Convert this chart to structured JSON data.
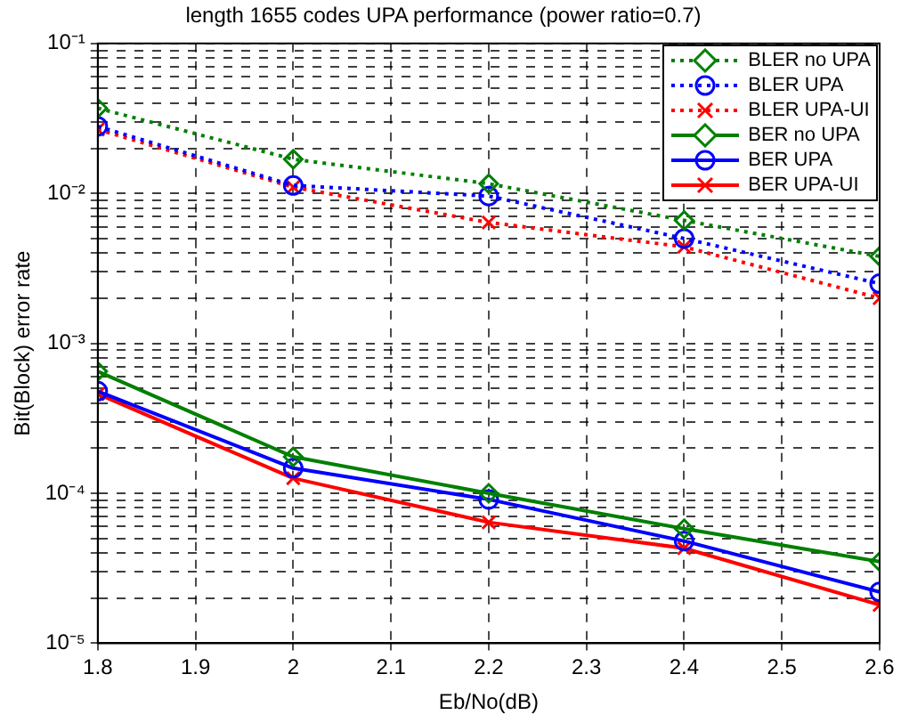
{
  "chart_data": {
    "type": "line",
    "title": "length 1655 codes UPA performance (power ratio=0.7)",
    "xlabel": "Eb/No(dB)",
    "ylabel": "Bit(Block) error rate",
    "x": [
      1.8,
      2.0,
      2.2,
      2.4,
      2.6
    ],
    "series": [
      {
        "name": "BLER no UPA",
        "color": "#008000",
        "marker": "diamond",
        "line_style": "dotted",
        "values": [
          0.037,
          0.0169,
          0.0116,
          0.0066,
          0.0038
        ]
      },
      {
        "name": "BLER UPA",
        "color": "#0000ff",
        "marker": "circle",
        "line_style": "dotted",
        "values": [
          0.028,
          0.0113,
          0.0096,
          0.005,
          0.0025
        ]
      },
      {
        "name": "BLER UPA-UI",
        "color": "#ff0000",
        "marker": "cross",
        "line_style": "dotted",
        "values": [
          0.0267,
          0.011,
          0.0064,
          0.0044,
          0.002
        ]
      },
      {
        "name": "BER no UPA",
        "color": "#008000",
        "marker": "diamond",
        "line_style": "solid",
        "values": [
          0.00065,
          0.000175,
          0.0001,
          5.8e-05,
          3.5e-05
        ]
      },
      {
        "name": "BER UPA",
        "color": "#0000ff",
        "marker": "circle",
        "line_style": "solid",
        "values": [
          0.00048,
          0.000147,
          9.1e-05,
          4.8e-05,
          2.2e-05
        ]
      },
      {
        "name": "BER UPA-UI",
        "color": "#ff0000",
        "marker": "cross",
        "line_style": "solid",
        "values": [
          0.00046,
          0.000126,
          6.4e-05,
          4.3e-05,
          1.8e-05
        ]
      }
    ],
    "log": "y",
    "grid": true,
    "legend": "top right",
    "xlim": [
      1.8,
      2.6
    ],
    "xticks": [
      1.8,
      1.9,
      2,
      2.1,
      2.2,
      2.3,
      2.4,
      2.5,
      2.6
    ],
    "ylim": [
      1e-05,
      0.1
    ],
    "yticks": [
      {
        "value": 1e-05,
        "label": "10⁻⁵"
      },
      {
        "value": 2e-05,
        "label": null
      },
      {
        "value": 3e-05,
        "label": null
      },
      {
        "value": 4e-05,
        "label": null
      },
      {
        "value": 5e-05,
        "label": null
      },
      {
        "value": 6e-05,
        "label": null
      },
      {
        "value": 7e-05,
        "label": null
      },
      {
        "value": 8e-05,
        "label": null
      },
      {
        "value": 9e-05,
        "label": null
      },
      {
        "value": 0.0001,
        "label": "10⁻⁴"
      },
      {
        "value": 0.0002,
        "label": null
      },
      {
        "value": 0.0003,
        "label": null
      },
      {
        "value": 0.0004,
        "label": null
      },
      {
        "value": 0.0005,
        "label": null
      },
      {
        "value": 0.0006,
        "label": null
      },
      {
        "value": 0.0007,
        "label": null
      },
      {
        "value": 0.0008,
        "label": null
      },
      {
        "value": 0.0009,
        "label": null
      },
      {
        "value": 0.001,
        "label": "10⁻³"
      },
      {
        "value": 0.002,
        "label": null
      },
      {
        "value": 0.003,
        "label": null
      },
      {
        "value": 0.004,
        "label": null
      },
      {
        "value": 0.005,
        "label": null
      },
      {
        "value": 0.006,
        "label": null
      },
      {
        "value": 0.007,
        "label": null
      },
      {
        "value": 0.008,
        "label": null
      },
      {
        "value": 0.009,
        "label": null
      },
      {
        "value": 0.01,
        "label": "10⁻²"
      },
      {
        "value": 0.02,
        "label": null
      },
      {
        "value": 0.03,
        "label": null
      },
      {
        "value": 0.04,
        "label": null
      },
      {
        "value": 0.05,
        "label": null
      },
      {
        "value": 0.06,
        "label": null
      },
      {
        "value": 0.07,
        "label": null
      },
      {
        "value": 0.08,
        "label": null
      },
      {
        "value": 0.09,
        "label": null
      },
      {
        "value": 0.1,
        "label": "10⁻¹"
      }
    ]
  }
}
